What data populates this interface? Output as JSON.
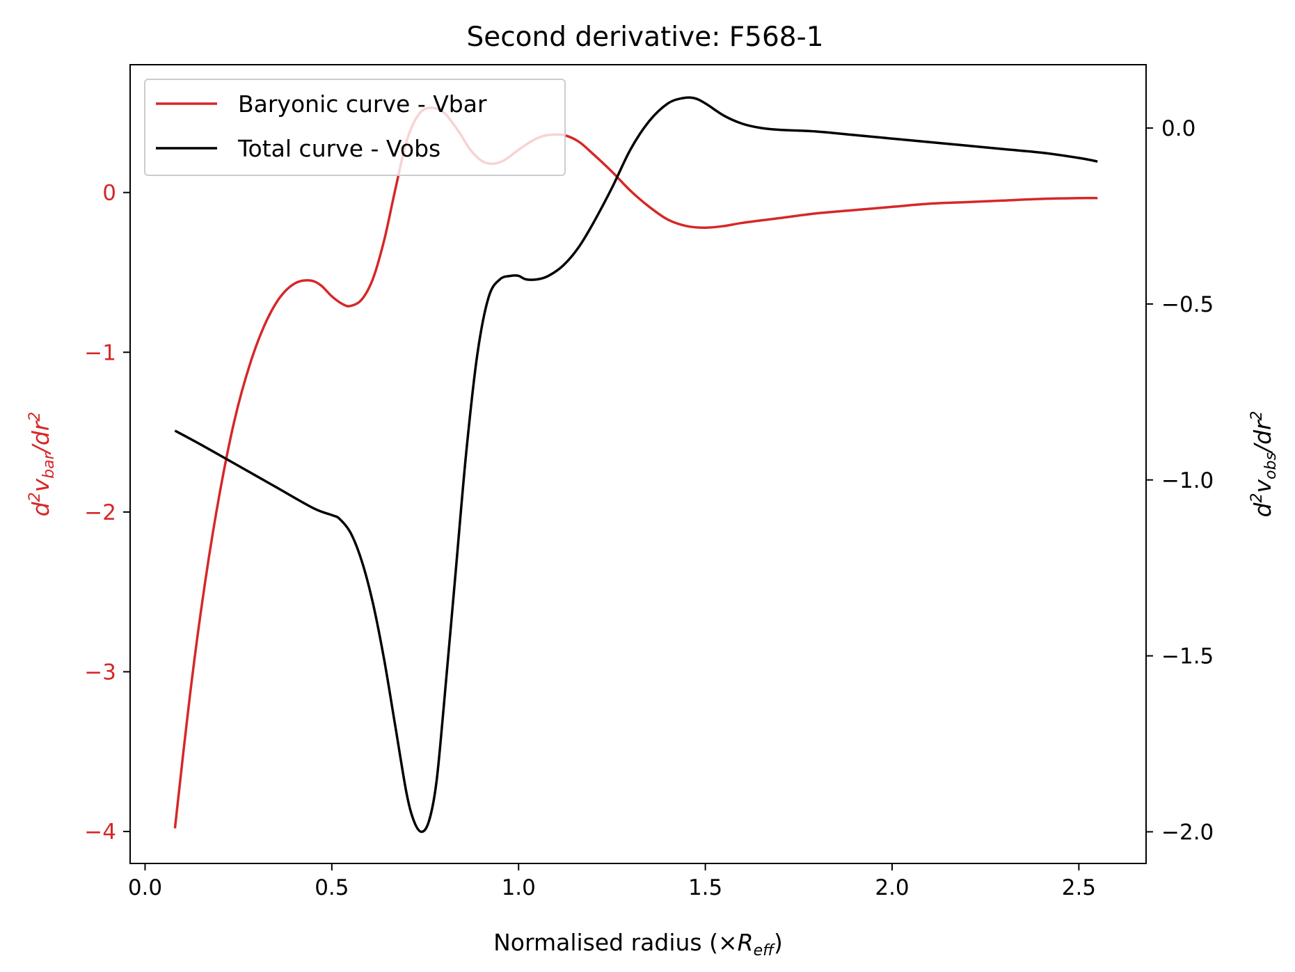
{
  "chart_data": {
    "type": "line",
    "title": "Second derivative: F568-1",
    "xlabel": {
      "prefix": "Normalised radius (×",
      "var": "R",
      "sub": "eff",
      "suffix": ")"
    },
    "ylabel_left": {
      "prefix": "d",
      "sup1": "2",
      "var": "v",
      "sub": "bar",
      "mid": "/dr",
      "sup2": "2"
    },
    "ylabel_right": {
      "prefix": "d",
      "sup1": "2",
      "var": "v",
      "sub": "obs",
      "mid": "/dr",
      "sup2": "2"
    },
    "xlim": [
      -0.04,
      2.68
    ],
    "ylim_left": [
      -4.2,
      0.8
    ],
    "ylim_right": [
      -2.09,
      0.18
    ],
    "x_ticks": [
      "0.0",
      "0.5",
      "1.0",
      "1.5",
      "2.0",
      "2.5"
    ],
    "y_left_ticks": [
      "0",
      "−1",
      "−2",
      "−3",
      "−4"
    ],
    "y_right_ticks": [
      "0.0",
      "−0.5",
      "−1.0",
      "−1.5",
      "−2.0"
    ],
    "legend_position": "upper-left",
    "colors": {
      "bar": "#d62728",
      "obs": "#000000"
    },
    "series": [
      {
        "name": "Baryonic curve - Vbar",
        "axis": "left",
        "color": "#d62728",
        "x": [
          0.08,
          0.12,
          0.16,
          0.2,
          0.24,
          0.28,
          0.32,
          0.36,
          0.4,
          0.44,
          0.47,
          0.5,
          0.53,
          0.55,
          0.58,
          0.61,
          0.64,
          0.67,
          0.7,
          0.73,
          0.76,
          0.8,
          0.84,
          0.87,
          0.9,
          0.93,
          0.96,
          0.99,
          1.02,
          1.05,
          1.08,
          1.12,
          1.16,
          1.2,
          1.25,
          1.3,
          1.35,
          1.4,
          1.45,
          1.5,
          1.55,
          1.6,
          1.7,
          1.8,
          1.9,
          2.0,
          2.1,
          2.2,
          2.3,
          2.4,
          2.5,
          2.55
        ],
        "y": [
          -3.98,
          -3.15,
          -2.45,
          -1.88,
          -1.42,
          -1.08,
          -0.83,
          -0.66,
          -0.57,
          -0.55,
          -0.58,
          -0.65,
          -0.7,
          -0.71,
          -0.67,
          -0.54,
          -0.3,
          0.02,
          0.32,
          0.48,
          0.53,
          0.5,
          0.38,
          0.27,
          0.2,
          0.18,
          0.2,
          0.25,
          0.3,
          0.34,
          0.36,
          0.36,
          0.32,
          0.24,
          0.13,
          0.01,
          -0.09,
          -0.17,
          -0.21,
          -0.22,
          -0.21,
          -0.19,
          -0.16,
          -0.13,
          -0.11,
          -0.09,
          -0.07,
          -0.06,
          -0.05,
          -0.04,
          -0.035,
          -0.035
        ]
      },
      {
        "name": "Total curve - Vobs",
        "axis": "right",
        "color": "#000000",
        "x": [
          0.08,
          0.15,
          0.25,
          0.35,
          0.45,
          0.5,
          0.52,
          0.55,
          0.58,
          0.61,
          0.64,
          0.67,
          0.7,
          0.72,
          0.74,
          0.76,
          0.78,
          0.8,
          0.83,
          0.86,
          0.89,
          0.92,
          0.95,
          0.98,
          1.0,
          1.02,
          1.05,
          1.08,
          1.12,
          1.16,
          1.2,
          1.25,
          1.3,
          1.35,
          1.4,
          1.44,
          1.47,
          1.5,
          1.55,
          1.6,
          1.65,
          1.7,
          1.8,
          1.9,
          2.0,
          2.1,
          2.2,
          2.3,
          2.4,
          2.5,
          2.55
        ],
        "y": [
          -0.86,
          -0.9,
          -0.96,
          -1.02,
          -1.08,
          -1.1,
          -1.11,
          -1.15,
          -1.23,
          -1.35,
          -1.51,
          -1.7,
          -1.89,
          -1.97,
          -2.0,
          -1.97,
          -1.86,
          -1.64,
          -1.28,
          -0.92,
          -0.64,
          -0.48,
          -0.43,
          -0.42,
          -0.42,
          -0.43,
          -0.43,
          -0.42,
          -0.39,
          -0.34,
          -0.27,
          -0.17,
          -0.06,
          0.02,
          0.07,
          0.085,
          0.085,
          0.07,
          0.035,
          0.012,
          0.0,
          -0.005,
          -0.01,
          -0.02,
          -0.03,
          -0.04,
          -0.05,
          -0.06,
          -0.07,
          -0.085,
          -0.095
        ]
      }
    ]
  }
}
